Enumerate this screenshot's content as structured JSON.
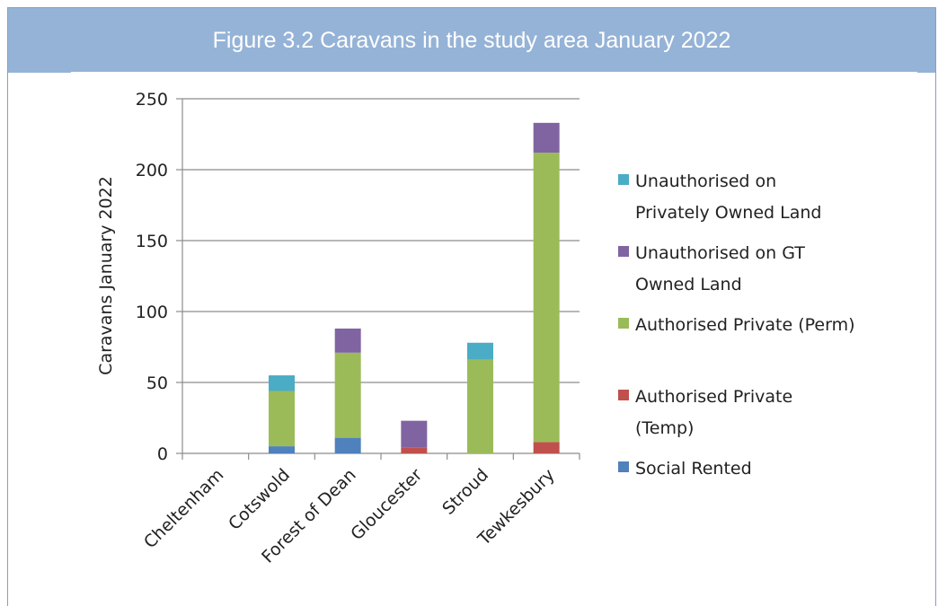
{
  "header": {
    "title": "Figure 3.2 Caravans in the study area January 2022"
  },
  "chart_data": {
    "type": "bar",
    "stacked": true,
    "title": "",
    "xlabel": "",
    "ylabel": "Caravans January 2022",
    "ylim": [
      0,
      250
    ],
    "yticks": [
      0,
      50,
      100,
      150,
      200,
      250
    ],
    "grid": true,
    "legend_position": "right",
    "categories": [
      "Cheltenham",
      "Cotswold",
      "Forest of Dean",
      "Gloucester",
      "Stroud",
      "Tewkesbury"
    ],
    "series": [
      {
        "name": "Social Rented",
        "color": "#4f81bd",
        "values": [
          0,
          5,
          11,
          0,
          0,
          0
        ]
      },
      {
        "name": "Authorised Private (Temp)",
        "color": "#c0504d",
        "values": [
          0,
          0,
          0,
          4,
          0,
          8
        ]
      },
      {
        "name": "Authorised Private (Perm)",
        "color": "#9bbb59",
        "values": [
          0,
          39,
          60,
          0,
          66,
          204
        ]
      },
      {
        "name": "Unauthorised on GT Owned Land",
        "color": "#8064a2",
        "values": [
          0,
          0,
          17,
          19,
          0,
          21
        ]
      },
      {
        "name": "Unauthorised on Privately Owned Land",
        "color": "#4bacc6",
        "values": [
          0,
          11,
          0,
          0,
          12,
          0
        ]
      }
    ],
    "legend": [
      {
        "lines": [
          "Unauthorised on",
          "Privately Owned Land"
        ],
        "color": "#4bacc6"
      },
      {
        "lines": [
          "Unauthorised on GT",
          "Owned Land"
        ],
        "color": "#8064a2"
      },
      {
        "lines": [
          "Authorised Private (Perm)"
        ],
        "color": "#9bbb59"
      },
      {
        "lines": [
          "Authorised Private",
          "(Temp)"
        ],
        "color": "#c0504d"
      },
      {
        "lines": [
          "Social Rented"
        ],
        "color": "#4f81bd"
      }
    ]
  }
}
